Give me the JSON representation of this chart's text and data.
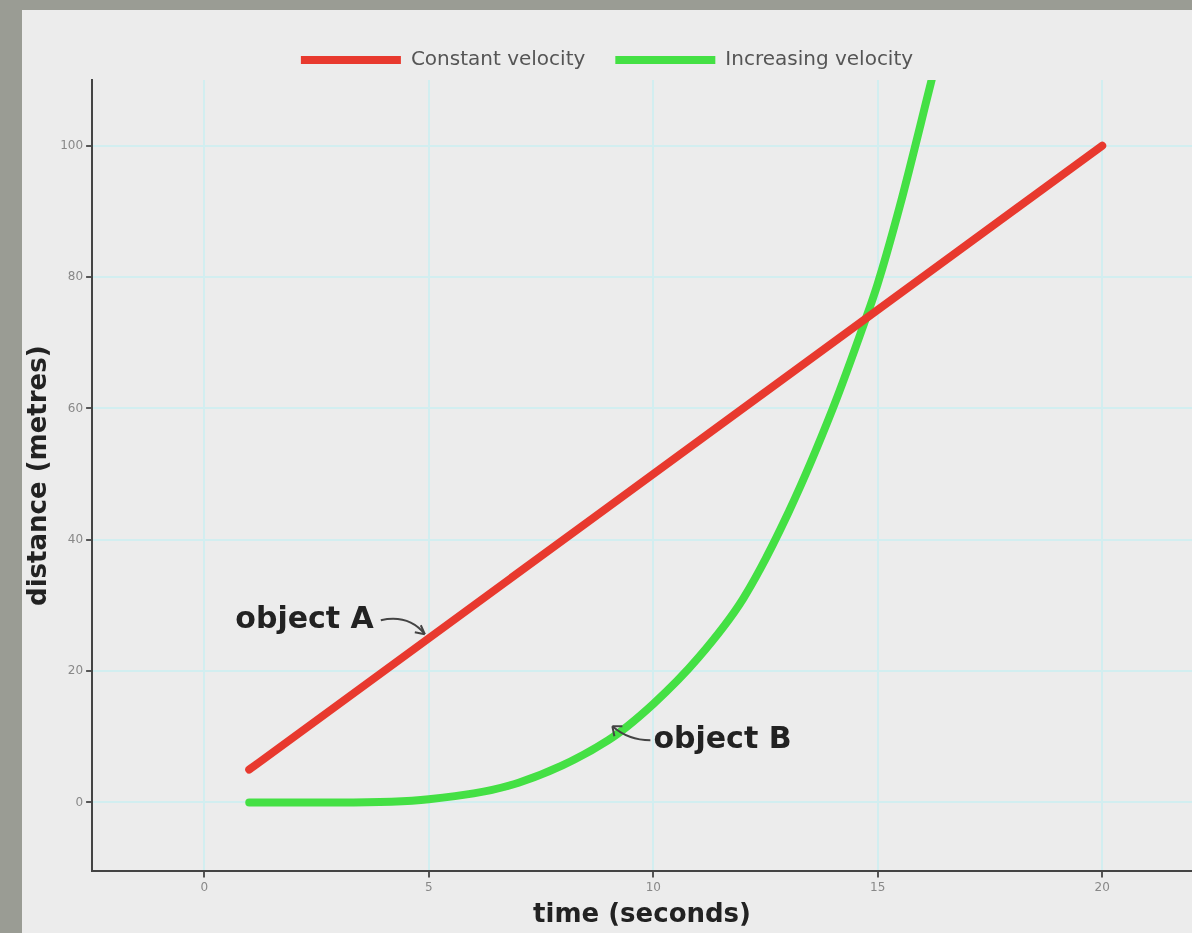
{
  "chart_data": {
    "type": "line",
    "xlabel": "time (seconds)",
    "ylabel": "distance (metres)",
    "xlim": [
      -2.5,
      22
    ],
    "ylim": [
      -10.5,
      110
    ],
    "xticks": [
      0,
      5,
      10,
      15,
      20
    ],
    "yticks": [
      0,
      20,
      40,
      60,
      80,
      100
    ],
    "grid": true,
    "legend": "top",
    "marker": "none",
    "line_style": "solid",
    "series": [
      {
        "name": "Constant velocity",
        "color": "#e8392e",
        "x": [
          1,
          20
        ],
        "values": [
          5,
          100
        ]
      },
      {
        "name": "Increasing velocity",
        "color": "#44e044",
        "x": [
          1,
          3,
          5,
          7,
          9,
          10,
          11,
          12,
          13,
          14,
          14.7,
          15,
          15.5,
          16.2
        ],
        "values": [
          0,
          0,
          0.5,
          3,
          9.5,
          15,
          22,
          31,
          44,
          60,
          73,
          79,
          91,
          110
        ]
      }
    ],
    "annotations": [
      {
        "text": "object A",
        "x": 5,
        "y": 25
      },
      {
        "text": "object B",
        "x": 9,
        "y": 11
      }
    ]
  }
}
